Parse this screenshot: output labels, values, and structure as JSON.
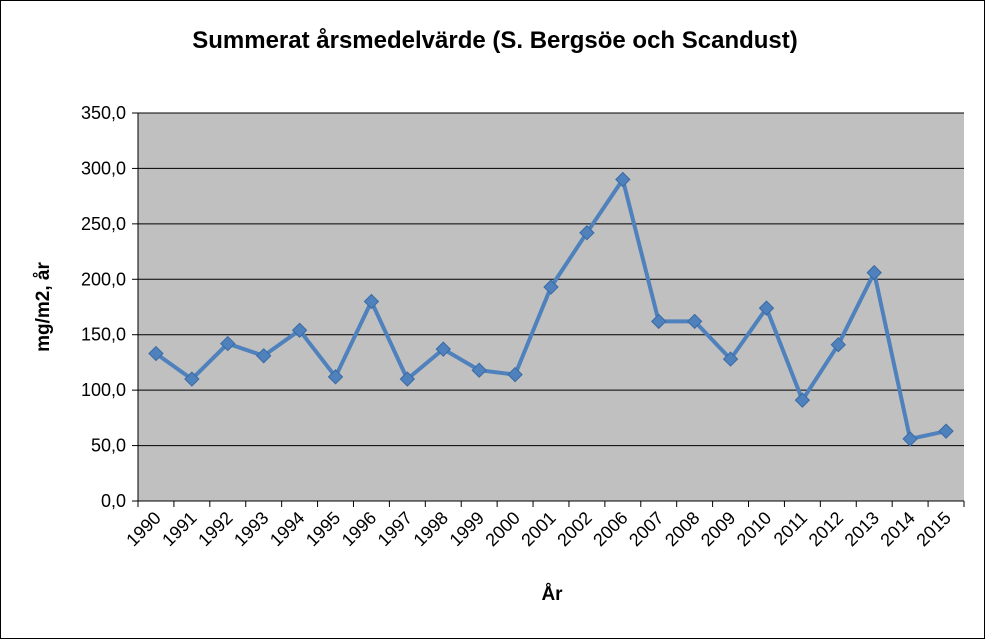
{
  "chart_data": {
    "type": "line",
    "title": "Summerat årsmedelvärde (S. Bergsöe och Scandust)",
    "xlabel": "År",
    "ylabel": "mg/m2, år",
    "ylim": [
      0,
      350
    ],
    "yticks": [
      "0,0",
      "50,0",
      "100,0",
      "150,0",
      "200,0",
      "250,0",
      "300,0",
      "350,0"
    ],
    "grid": true,
    "legend": "none",
    "colors": {
      "line": "#4f81bd",
      "plot_background": "#c0c0c0",
      "gridline": "#000000"
    },
    "categories": [
      "1990",
      "1991",
      "1992",
      "1993",
      "1994",
      "1995",
      "1996",
      "1997",
      "1998",
      "1999",
      "2000",
      "2001",
      "2002",
      "2006",
      "2007",
      "2008",
      "2009",
      "2010",
      "2011",
      "2012",
      "2013",
      "2014",
      "2015"
    ],
    "series": [
      {
        "values": [
          133,
          110,
          142,
          131,
          154,
          112,
          180,
          110,
          137,
          118,
          114,
          193,
          242,
          290,
          162,
          162,
          128,
          174,
          91,
          141,
          206,
          56,
          63
        ]
      }
    ]
  }
}
